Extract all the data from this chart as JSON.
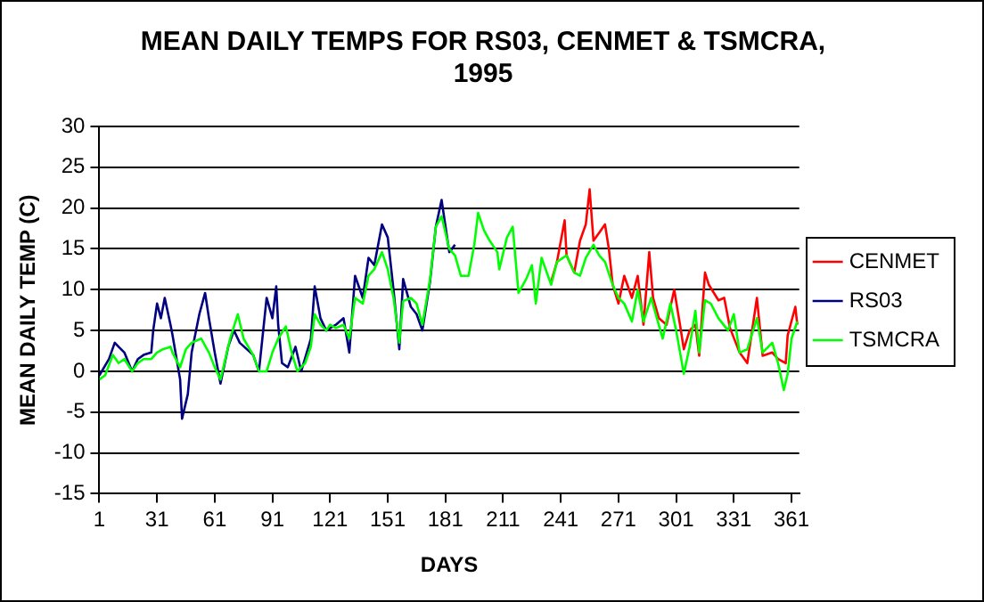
{
  "chart_data": {
    "type": "line",
    "title": "MEAN DAILY TEMPS FOR RS03, CENMET & TSMCRA,\n1995",
    "xlabel": "DAYS",
    "ylabel": "MEAN DAILY TEMP (C)",
    "xlim": [
      1,
      365
    ],
    "xticks": [
      1,
      31,
      61,
      91,
      121,
      151,
      181,
      211,
      241,
      271,
      301,
      331,
      361
    ],
    "ylim": [
      -15,
      30
    ],
    "yticks": [
      -15,
      -10,
      -5,
      0,
      5,
      10,
      15,
      20,
      25,
      30
    ],
    "grid": "y",
    "legend": "right",
    "marker": "none",
    "line_style": "solid",
    "series": [
      {
        "name": "CENMET",
        "color": "#ff0000",
        "x": [
          236,
          239,
          243,
          244,
          248,
          251,
          254,
          256,
          258,
          261,
          264,
          266,
          268,
          271,
          274,
          278,
          281,
          284,
          287,
          289,
          292,
          296,
          300,
          303,
          305,
          308,
          311,
          313,
          316,
          318,
          323,
          326,
          329,
          334,
          338,
          343,
          346,
          351,
          354,
          358,
          359,
          363,
          364
        ],
        "values": [
          11,
          13.4,
          18.5,
          14.2,
          12.1,
          16,
          18,
          22.3,
          16,
          17,
          18,
          15,
          10.6,
          8.3,
          11.7,
          9,
          11.7,
          5.7,
          14.6,
          9,
          6.5,
          5.7,
          10,
          5.7,
          2.7,
          5,
          5.7,
          1.9,
          12.1,
          10.6,
          8.7,
          9,
          5.3,
          2.3,
          1,
          9,
          1.9,
          2.3,
          1.5,
          1,
          4.4,
          7.9,
          5.7
        ]
      },
      {
        "name": "RS03",
        "color": "#000080",
        "x": [
          1,
          6,
          9,
          11,
          14,
          18,
          21,
          24,
          28,
          29,
          31,
          33,
          35,
          38,
          39,
          43,
          44,
          47,
          49,
          53,
          56,
          58,
          61,
          64,
          68,
          71,
          74,
          81,
          84,
          88,
          91,
          93,
          94,
          96,
          99,
          103,
          106,
          111,
          113,
          116,
          119,
          124,
          128,
          131,
          134,
          138,
          141,
          144,
          148,
          151,
          154,
          157,
          159,
          163,
          166,
          169,
          173,
          176,
          179,
          183,
          186
        ],
        "values": [
          -0.5,
          1.5,
          3.5,
          3,
          2.3,
          0,
          1.5,
          2,
          2.3,
          5,
          8.3,
          6.5,
          9,
          5.7,
          4.5,
          -1,
          -5.8,
          -2.8,
          2.3,
          7,
          9.6,
          6.5,
          2.3,
          -1.5,
          3,
          5,
          3.5,
          2,
          0,
          9,
          6.5,
          10.4,
          5.7,
          1,
          0.5,
          3,
          0,
          4,
          10.4,
          6.5,
          5,
          5.7,
          6.5,
          2.3,
          11.7,
          9,
          13.9,
          13,
          18,
          16.4,
          10,
          2.7,
          11.3,
          7.9,
          7,
          5,
          11,
          17.7,
          21,
          14.6,
          15.5
        ]
      },
      {
        "name": "TSMCRA",
        "color": "#00ff00",
        "x": [
          1,
          4,
          8,
          11,
          14,
          18,
          21,
          24,
          28,
          31,
          34,
          38,
          39,
          43,
          46,
          49,
          54,
          58,
          61,
          64,
          68,
          69,
          73,
          76,
          81,
          84,
          88,
          91,
          94,
          98,
          101,
          104,
          108,
          111,
          113,
          116,
          119,
          121,
          124,
          128,
          131,
          134,
          138,
          141,
          144,
          148,
          151,
          154,
          157,
          159,
          163,
          166,
          169,
          173,
          176,
          179,
          183,
          186,
          189,
          193,
          196,
          198,
          201,
          204,
          208,
          209,
          213,
          216,
          219,
          223,
          226,
          228,
          231,
          236,
          239,
          244,
          248,
          251,
          254,
          258,
          261,
          264,
          268,
          271,
          274,
          278,
          281,
          284,
          288,
          291,
          294,
          298,
          301,
          305,
          308,
          311,
          313,
          316,
          319,
          323,
          328,
          331,
          334,
          338,
          343,
          346,
          351,
          354,
          357,
          359,
          361,
          364
        ],
        "values": [
          -1,
          -0.5,
          2,
          1,
          1.5,
          0,
          1,
          1.5,
          1.5,
          2.3,
          2.7,
          3,
          2.3,
          0.5,
          2.7,
          3.5,
          4,
          2.3,
          0.5,
          -1,
          3,
          4,
          7,
          4,
          2,
          0,
          0,
          2.3,
          4,
          5.5,
          2.3,
          0,
          1,
          3,
          7,
          5.7,
          5,
          5.7,
          5.3,
          5.7,
          4,
          9,
          8.3,
          11.7,
          12.5,
          14.6,
          12.5,
          9,
          3.5,
          8.6,
          9,
          8.3,
          5.7,
          11.3,
          17.7,
          19,
          15,
          14.2,
          11.7,
          11.7,
          15.5,
          19.4,
          17.3,
          16,
          14.6,
          12.5,
          16.4,
          17.7,
          9.6,
          11.3,
          13,
          8.3,
          13.9,
          10.6,
          13.4,
          14.2,
          12.1,
          11.7,
          13.9,
          15.5,
          14.2,
          13.4,
          10.6,
          9,
          8.3,
          6.1,
          10,
          6.1,
          9,
          6.5,
          4,
          8.3,
          5,
          -0.3,
          3,
          7.4,
          2.3,
          8.7,
          8.3,
          6.5,
          5,
          7,
          2.3,
          2.7,
          6.5,
          2.3,
          3.5,
          1,
          -2.3,
          -0.3,
          4,
          6.1
        ]
      }
    ]
  }
}
